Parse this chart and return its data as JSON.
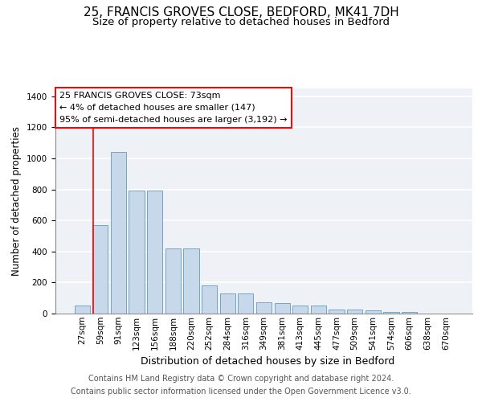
{
  "title1": "25, FRANCIS GROVES CLOSE, BEDFORD, MK41 7DH",
  "title2": "Size of property relative to detached houses in Bedford",
  "xlabel": "Distribution of detached houses by size in Bedford",
  "ylabel": "Number of detached properties",
  "categories": [
    "27sqm",
    "59sqm",
    "91sqm",
    "123sqm",
    "156sqm",
    "188sqm",
    "220sqm",
    "252sqm",
    "284sqm",
    "316sqm",
    "349sqm",
    "381sqm",
    "413sqm",
    "445sqm",
    "477sqm",
    "509sqm",
    "541sqm",
    "574sqm",
    "606sqm",
    "638sqm",
    "670sqm"
  ],
  "values": [
    50,
    570,
    1040,
    790,
    790,
    420,
    420,
    180,
    130,
    130,
    70,
    65,
    50,
    50,
    27,
    25,
    20,
    12,
    10,
    0,
    0
  ],
  "bar_color": "#c8d8eb",
  "bar_edge_color": "#6699bb",
  "annotation_text": "25 FRANCIS GROVES CLOSE: 73sqm\n← 4% of detached houses are smaller (147)\n95% of semi-detached houses are larger (3,192) →",
  "footnote1": "Contains HM Land Registry data © Crown copyright and database right 2024.",
  "footnote2": "Contains public sector information licensed under the Open Government Licence v3.0.",
  "ylim": [
    0,
    1450
  ],
  "yticks": [
    0,
    200,
    400,
    600,
    800,
    1000,
    1200,
    1400
  ],
  "background_color": "#eef2f7",
  "grid_color": "#ffffff",
  "title1_fontsize": 11,
  "title2_fontsize": 9.5,
  "xlabel_fontsize": 9,
  "ylabel_fontsize": 8.5,
  "tick_fontsize": 7.5,
  "annotation_fontsize": 8,
  "footnote_fontsize": 7
}
